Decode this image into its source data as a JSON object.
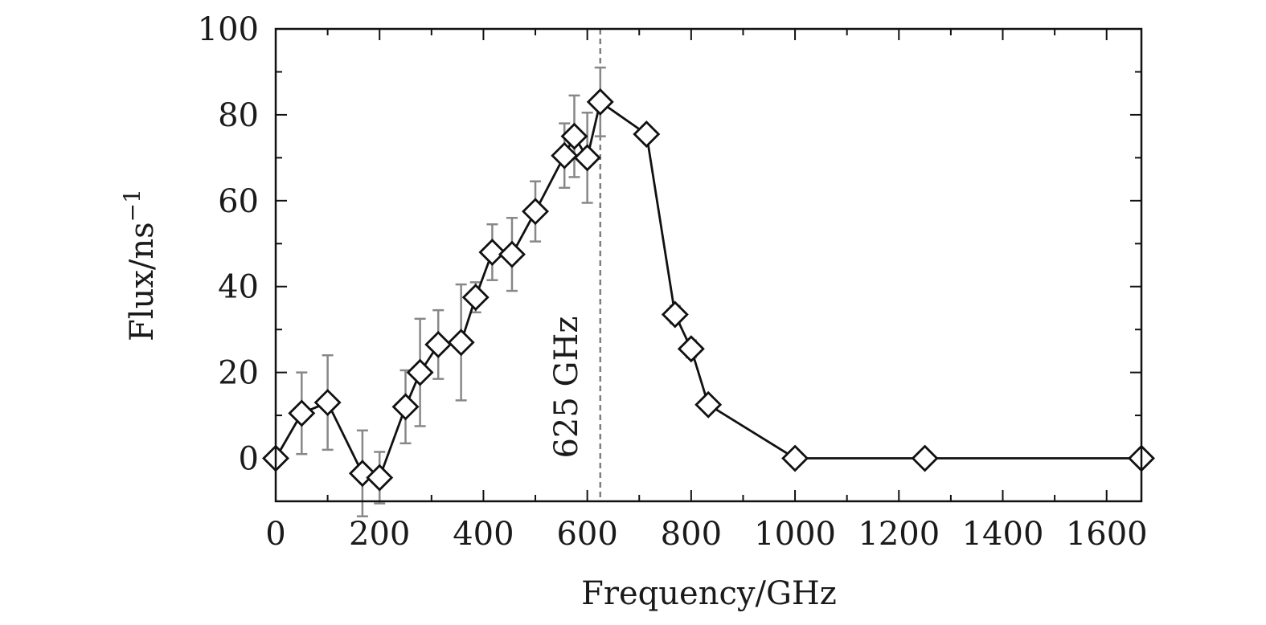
{
  "chart_data": {
    "type": "scatter",
    "title": "",
    "xlabel": "Frequency/GHz",
    "ylabel_main": "Flux/ns",
    "ylabel_sup": "−1",
    "xlim": [
      0,
      1667
    ],
    "ylim": [
      -10,
      100
    ],
    "x_ticks": [
      0,
      200,
      400,
      600,
      800,
      1000,
      1200,
      1400,
      1600
    ],
    "x_tick_labels": [
      "0",
      "200",
      "400",
      "600",
      "800",
      "1000",
      "1200",
      "1400",
      "1600"
    ],
    "y_ticks": [
      0,
      20,
      40,
      60,
      80,
      100
    ],
    "y_tick_labels": [
      "0",
      "20",
      "40",
      "60",
      "80",
      "100"
    ],
    "grid": false,
    "marker": "diamond-open",
    "line_color": "#111111",
    "error_bar_color": "#888888",
    "reference_line": {
      "x": 625,
      "style": "dashed",
      "color": "#7f7f7f",
      "label": "625 GHz"
    },
    "series": [
      {
        "points": [
          {
            "x": 0,
            "y": 0,
            "err": 0
          },
          {
            "x": 50,
            "y": 10.5,
            "err": 9.5
          },
          {
            "x": 100,
            "y": 13,
            "err": 11
          },
          {
            "x": 167,
            "y": -3.5,
            "err": 10
          },
          {
            "x": 200,
            "y": -4.5,
            "err": 6
          },
          {
            "x": 250,
            "y": 12,
            "err": 8.5
          },
          {
            "x": 278,
            "y": 20,
            "err": 12.5
          },
          {
            "x": 313,
            "y": 26.5,
            "err": 8
          },
          {
            "x": 357,
            "y": 27,
            "err": 13.5
          },
          {
            "x": 385,
            "y": 37.5,
            "err": 3.5
          },
          {
            "x": 417,
            "y": 48,
            "err": 6.5
          },
          {
            "x": 455,
            "y": 47.5,
            "err": 8.5
          },
          {
            "x": 500,
            "y": 57.5,
            "err": 7
          },
          {
            "x": 556,
            "y": 70.5,
            "err": 7.5
          },
          {
            "x": 575,
            "y": 75,
            "err": 9.5
          },
          {
            "x": 600,
            "y": 70,
            "err": 10.5
          },
          {
            "x": 625,
            "y": 83,
            "err": 8
          },
          {
            "x": 714,
            "y": 75.5,
            "err": 1.5
          },
          {
            "x": 769,
            "y": 33.5,
            "err": 2
          },
          {
            "x": 800,
            "y": 25.5,
            "err": 2
          },
          {
            "x": 833,
            "y": 12.5,
            "err": 1.5
          },
          {
            "x": 1000,
            "y": 0,
            "err": 0
          },
          {
            "x": 1250,
            "y": 0,
            "err": 0
          },
          {
            "x": 1667,
            "y": 0,
            "err": 0
          }
        ]
      }
    ]
  }
}
